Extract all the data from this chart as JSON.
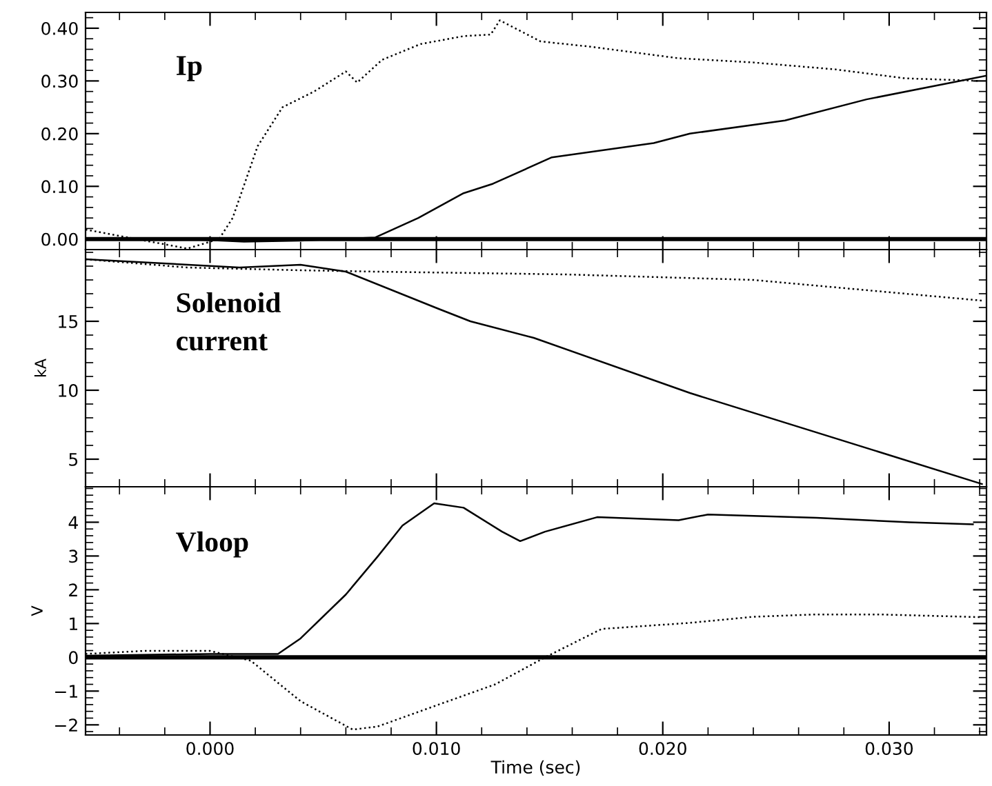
{
  "chart_data": [
    {
      "type": "line",
      "annotations": [
        "Ip"
      ],
      "xlim": [
        -0.0055,
        0.0343
      ],
      "xticks": [
        {
          "value": 0.0,
          "label": null
        },
        {
          "value": 0.01,
          "label": null
        },
        {
          "value": 0.02,
          "label": null
        },
        {
          "value": 0.03,
          "label": null
        }
      ],
      "ylim": [
        -0.02,
        0.43
      ],
      "yticks": [
        {
          "value": 0,
          "label": "0.00"
        },
        {
          "value": 0.1,
          "label": "0.10"
        },
        {
          "value": 0.2,
          "label": "0.20"
        },
        {
          "value": 0.3,
          "label": "0.30"
        },
        {
          "value": 0.4,
          "label": "0.40"
        }
      ],
      "tick_labels": "y",
      "grid": false,
      "legend": false,
      "marker": "none",
      "ref_lines": [
        {
          "axis": "y",
          "value": 0,
          "color": "#000000"
        }
      ],
      "series": [
        {
          "color": "#000000",
          "line_style": "solid",
          "x": [
            -0.0055,
            -0.002,
            0.0,
            0.0015,
            0.004,
            0.0073,
            0.0092,
            0.0112,
            0.0125,
            0.0151,
            0.0196,
            0.0212,
            0.0254,
            0.029,
            0.0343
          ],
          "values": [
            0.002,
            0.001,
            -0.002,
            -0.005,
            -0.003,
            0.003,
            0.04,
            0.087,
            0.105,
            0.155,
            0.182,
            0.2,
            0.225,
            0.265,
            0.31
          ]
        },
        {
          "color": "#000000",
          "line_style": "dotted",
          "x": [
            -0.0055,
            -0.001,
            0.0004,
            0.001,
            0.0021,
            0.0032,
            0.0046,
            0.006,
            0.0065,
            0.0076,
            0.0093,
            0.0112,
            0.0124,
            0.0128,
            0.0146,
            0.0168,
            0.0207,
            0.024,
            0.0276,
            0.0307,
            0.034
          ],
          "values": [
            0.018,
            -0.018,
            0.0,
            0.04,
            0.176,
            0.25,
            0.28,
            0.318,
            0.297,
            0.34,
            0.37,
            0.385,
            0.388,
            0.415,
            0.375,
            0.365,
            0.343,
            0.335,
            0.322,
            0.305,
            0.3
          ]
        }
      ]
    },
    {
      "type": "line",
      "annotations": [
        "Solenoid\ncurrent"
      ],
      "ylabel": "kA",
      "xlim": [
        -0.0055,
        0.0343
      ],
      "xticks": [
        {
          "value": 0.0,
          "label": null
        },
        {
          "value": 0.01,
          "label": null
        },
        {
          "value": 0.02,
          "label": null
        },
        {
          "value": 0.03,
          "label": null
        }
      ],
      "ylim": [
        3,
        20.2
      ],
      "yticks": [
        5,
        10,
        15
      ],
      "tick_labels": "y",
      "grid": false,
      "legend": false,
      "marker": "none",
      "series": [
        {
          "color": "#000000",
          "line_style": "solid",
          "x": [
            -0.0055,
            0.0013,
            0.004,
            0.006,
            0.0101,
            0.0115,
            0.0143,
            0.0212,
            0.0341
          ],
          "values": [
            19.5,
            18.9,
            19.1,
            18.6,
            15.9,
            15.0,
            13.8,
            9.8,
            3.2
          ]
        },
        {
          "color": "#000000",
          "line_style": "dotted",
          "x": [
            -0.0055,
            -0.001,
            0.004,
            0.0074,
            0.0157,
            0.024,
            0.0341
          ],
          "values": [
            19.5,
            18.9,
            18.7,
            18.6,
            18.4,
            18.0,
            16.5
          ]
        }
      ]
    },
    {
      "type": "line",
      "annotations": [
        "Vloop"
      ],
      "ylabel": "V",
      "xlabel": "Time (sec)",
      "xlim": [
        -0.0055,
        0.0343
      ],
      "xticks": [
        {
          "value": 0.0,
          "label": "0.000"
        },
        {
          "value": 0.01,
          "label": "0.010"
        },
        {
          "value": 0.02,
          "label": "0.020"
        },
        {
          "value": 0.03,
          "label": "0.030"
        }
      ],
      "ylim": [
        -2.3,
        5.05
      ],
      "yticks": [
        {
          "value": -2,
          "label": "−2"
        },
        {
          "value": -1,
          "label": "−1"
        },
        0,
        1,
        2,
        3,
        4
      ],
      "grid": false,
      "legend": false,
      "marker": "none",
      "ref_lines": [
        {
          "axis": "y",
          "value": 0,
          "color": "#000000"
        }
      ],
      "series": [
        {
          "color": "#000000",
          "line_style": "solid",
          "x": [
            -0.0055,
            0.0,
            0.003,
            0.004,
            0.006,
            0.0074,
            0.0085,
            0.0099,
            0.0112,
            0.0129,
            0.0137,
            0.0148,
            0.0171,
            0.0207,
            0.022,
            0.0268,
            0.0309,
            0.0337
          ],
          "values": [
            0.05,
            0.1,
            0.1,
            0.56,
            1.86,
            2.98,
            3.9,
            4.56,
            4.43,
            3.72,
            3.44,
            3.72,
            4.15,
            4.06,
            4.23,
            4.13,
            4.0,
            3.94
          ]
        },
        {
          "color": "#000000",
          "line_style": "dotted",
          "x": [
            -0.0055,
            -0.0029,
            0.0,
            0.0018,
            0.004,
            0.0063,
            0.0074,
            0.0101,
            0.0126,
            0.0148,
            0.0173,
            0.0212,
            0.024,
            0.0268,
            0.0295,
            0.034
          ],
          "values": [
            0.1,
            0.19,
            0.19,
            -0.1,
            -1.3,
            -2.14,
            -2.05,
            -1.4,
            -0.8,
            0.0,
            0.84,
            1.02,
            1.2,
            1.27,
            1.27,
            1.19
          ]
        }
      ]
    }
  ]
}
